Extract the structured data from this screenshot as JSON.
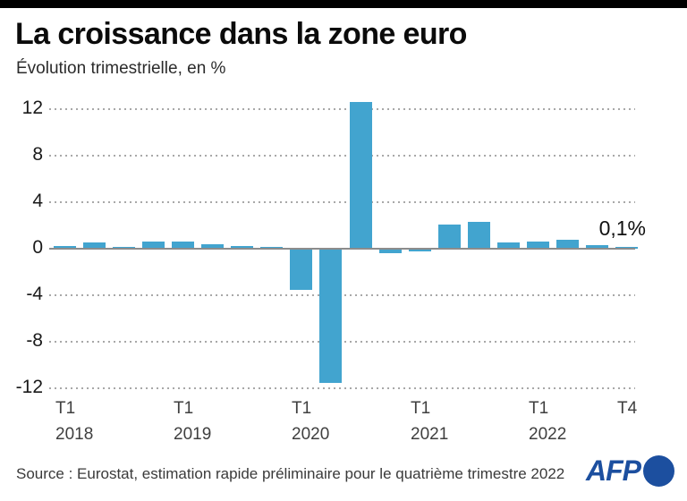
{
  "header": {
    "title": "La croissance dans la zone euro",
    "subtitle": "Évolution trimestrielle, en %"
  },
  "footer": {
    "source": "Source : Eurostat, estimation rapide préliminaire pour le quatrième trimestre 2022",
    "logo_text": "AFP"
  },
  "colors": {
    "bar": "#42a4cf",
    "afp_blue": "#1c4f9f",
    "top_bar": "#000000",
    "grid": "#a8a8a8",
    "axis": "#8c8c8c"
  },
  "chart_data": {
    "type": "bar",
    "title": "La croissance dans la zone euro",
    "subtitle": "Évolution trimestrielle, en %",
    "unit": "%",
    "ylim": [
      -12,
      12
    ],
    "yticks": [
      12,
      8,
      4,
      0,
      -4,
      -8,
      -12
    ],
    "grid": "horizontal-dotted",
    "categories": [
      "T1 2018",
      "T2 2018",
      "T3 2018",
      "T4 2018",
      "T1 2019",
      "T2 2019",
      "T3 2019",
      "T4 2019",
      "T1 2020",
      "T2 2020",
      "T3 2020",
      "T4 2020",
      "T1 2021",
      "T2 2021",
      "T3 2021",
      "T4 2021",
      "T1 2022",
      "T2 2022",
      "T3 2022",
      "T4 2022"
    ],
    "values": [
      0.2,
      0.5,
      0.1,
      0.6,
      0.6,
      0.4,
      0.2,
      0.1,
      -3.5,
      -11.5,
      12.6,
      -0.4,
      -0.2,
      2.1,
      2.3,
      0.5,
      0.6,
      0.8,
      0.3,
      0.1
    ],
    "x_tick_labels": [
      {
        "index": 0,
        "line1": "T1",
        "line2": "2018"
      },
      {
        "index": 4,
        "line1": "T1",
        "line2": "2019"
      },
      {
        "index": 8,
        "line1": "T1",
        "line2": "2020"
      },
      {
        "index": 12,
        "line1": "T1",
        "line2": "2021"
      },
      {
        "index": 16,
        "line1": "T1",
        "line2": "2022"
      },
      {
        "index": 19,
        "line1": "T4",
        "line2": ""
      }
    ],
    "annotation": {
      "text": "0,1%",
      "target_category": "T4 2022"
    }
  }
}
